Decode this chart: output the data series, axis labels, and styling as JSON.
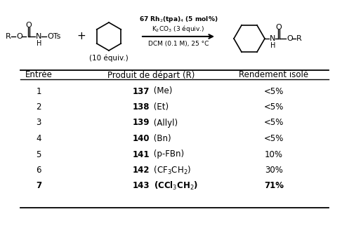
{
  "background_color": "#ffffff",
  "table_headers": [
    "Entrée",
    "Produit de départ (R)",
    "Rendement isolé"
  ],
  "entries": [
    [
      "1",
      "137",
      " (Me)",
      "<5%",
      false
    ],
    [
      "2",
      "138",
      " (Et)",
      "<5%",
      false
    ],
    [
      "3",
      "139",
      " (Allyl)",
      "<5%",
      false
    ],
    [
      "4",
      "140",
      " (Bn)",
      "<5%",
      false
    ],
    [
      "5",
      "141",
      " (p-FBn)",
      "10%",
      false
    ],
    [
      "6",
      "142",
      " (CF$_3$CH$_2$)",
      "30%",
      false
    ],
    [
      "7",
      "143",
      " (CCl$_3$CH$_2$)",
      "71%",
      true
    ]
  ]
}
